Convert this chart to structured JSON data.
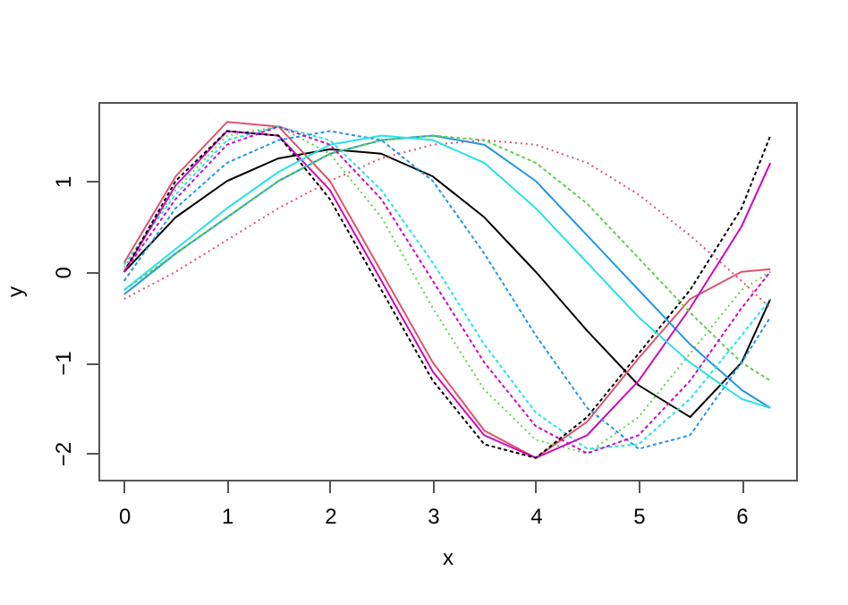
{
  "chart_data": {
    "type": "line",
    "xlabel": "x",
    "ylabel": "y",
    "x": [
      0,
      0.5,
      1,
      1.5,
      2,
      2.5,
      3,
      3.5,
      4,
      4.5,
      5,
      5.5,
      6,
      6.28
    ],
    "xlim": [
      -0.25,
      6.53
    ],
    "ylim": [
      -2.29,
      1.87
    ],
    "xticks": [
      0,
      1,
      2,
      3,
      4,
      5,
      6
    ],
    "yticks": [
      -2,
      -1,
      0,
      1
    ],
    "grid": false,
    "series": [
      {
        "color": "#000000",
        "line_style": "solid",
        "values": [
          0,
          0.6,
          1.0,
          1.25,
          1.35,
          1.3,
          1.05,
          0.6,
          0,
          -0.65,
          -1.25,
          -1.6,
          -1.0,
          -0.3
        ]
      },
      {
        "color": "#df536b",
        "line_style": "solid",
        "values": [
          0.1,
          1.05,
          1.65,
          1.6,
          1.0,
          0.0,
          -1.0,
          -1.75,
          -2.05,
          -1.65,
          -0.95,
          -0.3,
          0.0,
          0.03
        ]
      },
      {
        "color": "#61d04f",
        "line_style": "dotted",
        "values": [
          0.05,
          0.9,
          1.5,
          1.6,
          1.3,
          0.6,
          -0.4,
          -1.3,
          -1.85,
          -2.0,
          -1.6,
          -0.9,
          -0.2,
          0.0
        ]
      },
      {
        "color": "#2297e6",
        "line_style": "solid",
        "values": [
          -0.25,
          0.2,
          0.6,
          1.0,
          1.3,
          1.45,
          1.5,
          1.4,
          1.0,
          0.4,
          -0.2,
          -0.8,
          -1.3,
          -1.5
        ]
      },
      {
        "color": "#28e2e5",
        "line_style": "dashed",
        "values": [
          0.08,
          0.85,
          1.45,
          1.6,
          1.45,
          0.9,
          0.1,
          -0.8,
          -1.55,
          -1.95,
          -1.9,
          -1.4,
          -0.7,
          -0.3
        ]
      },
      {
        "color": "#cd0bbc",
        "line_style": "solid",
        "values": [
          0.0,
          0.95,
          1.55,
          1.5,
          0.9,
          -0.1,
          -1.1,
          -1.8,
          -2.05,
          -1.8,
          -1.2,
          -0.4,
          0.5,
          1.2
        ]
      },
      {
        "color": "#000000",
        "line_style": "dashed",
        "values": [
          0.0,
          1.0,
          1.55,
          1.5,
          0.8,
          -0.2,
          -1.2,
          -1.9,
          -2.05,
          -1.6,
          -0.9,
          -0.2,
          0.7,
          1.5
        ]
      },
      {
        "color": "#df536b",
        "line_style": "dotted",
        "values": [
          -0.3,
          0.0,
          0.35,
          0.7,
          1.0,
          1.25,
          1.4,
          1.45,
          1.4,
          1.2,
          0.85,
          0.4,
          -0.1,
          -0.4
        ]
      },
      {
        "color": "#61d04f",
        "line_style": "dashed",
        "values": [
          -0.2,
          0.2,
          0.6,
          1.0,
          1.3,
          1.45,
          1.5,
          1.45,
          1.2,
          0.75,
          0.15,
          -0.45,
          -1.0,
          -1.2
        ]
      },
      {
        "color": "#2297e6",
        "line_style": "dashed",
        "values": [
          -0.1,
          0.7,
          1.2,
          1.45,
          1.55,
          1.45,
          1.0,
          0.2,
          -0.7,
          -1.5,
          -1.95,
          -1.8,
          -1.0,
          -0.5
        ]
      },
      {
        "color": "#28e2e5",
        "line_style": "solid",
        "values": [
          -0.2,
          0.25,
          0.7,
          1.1,
          1.4,
          1.5,
          1.45,
          1.2,
          0.7,
          0.1,
          -0.5,
          -1.0,
          -1.4,
          -1.5
        ]
      },
      {
        "color": "#cd0bbc",
        "line_style": "dashed",
        "values": [
          0.0,
          0.8,
          1.4,
          1.6,
          1.4,
          0.8,
          -0.1,
          -1.0,
          -1.7,
          -2.0,
          -1.8,
          -1.2,
          -0.4,
          0.0
        ]
      }
    ]
  }
}
